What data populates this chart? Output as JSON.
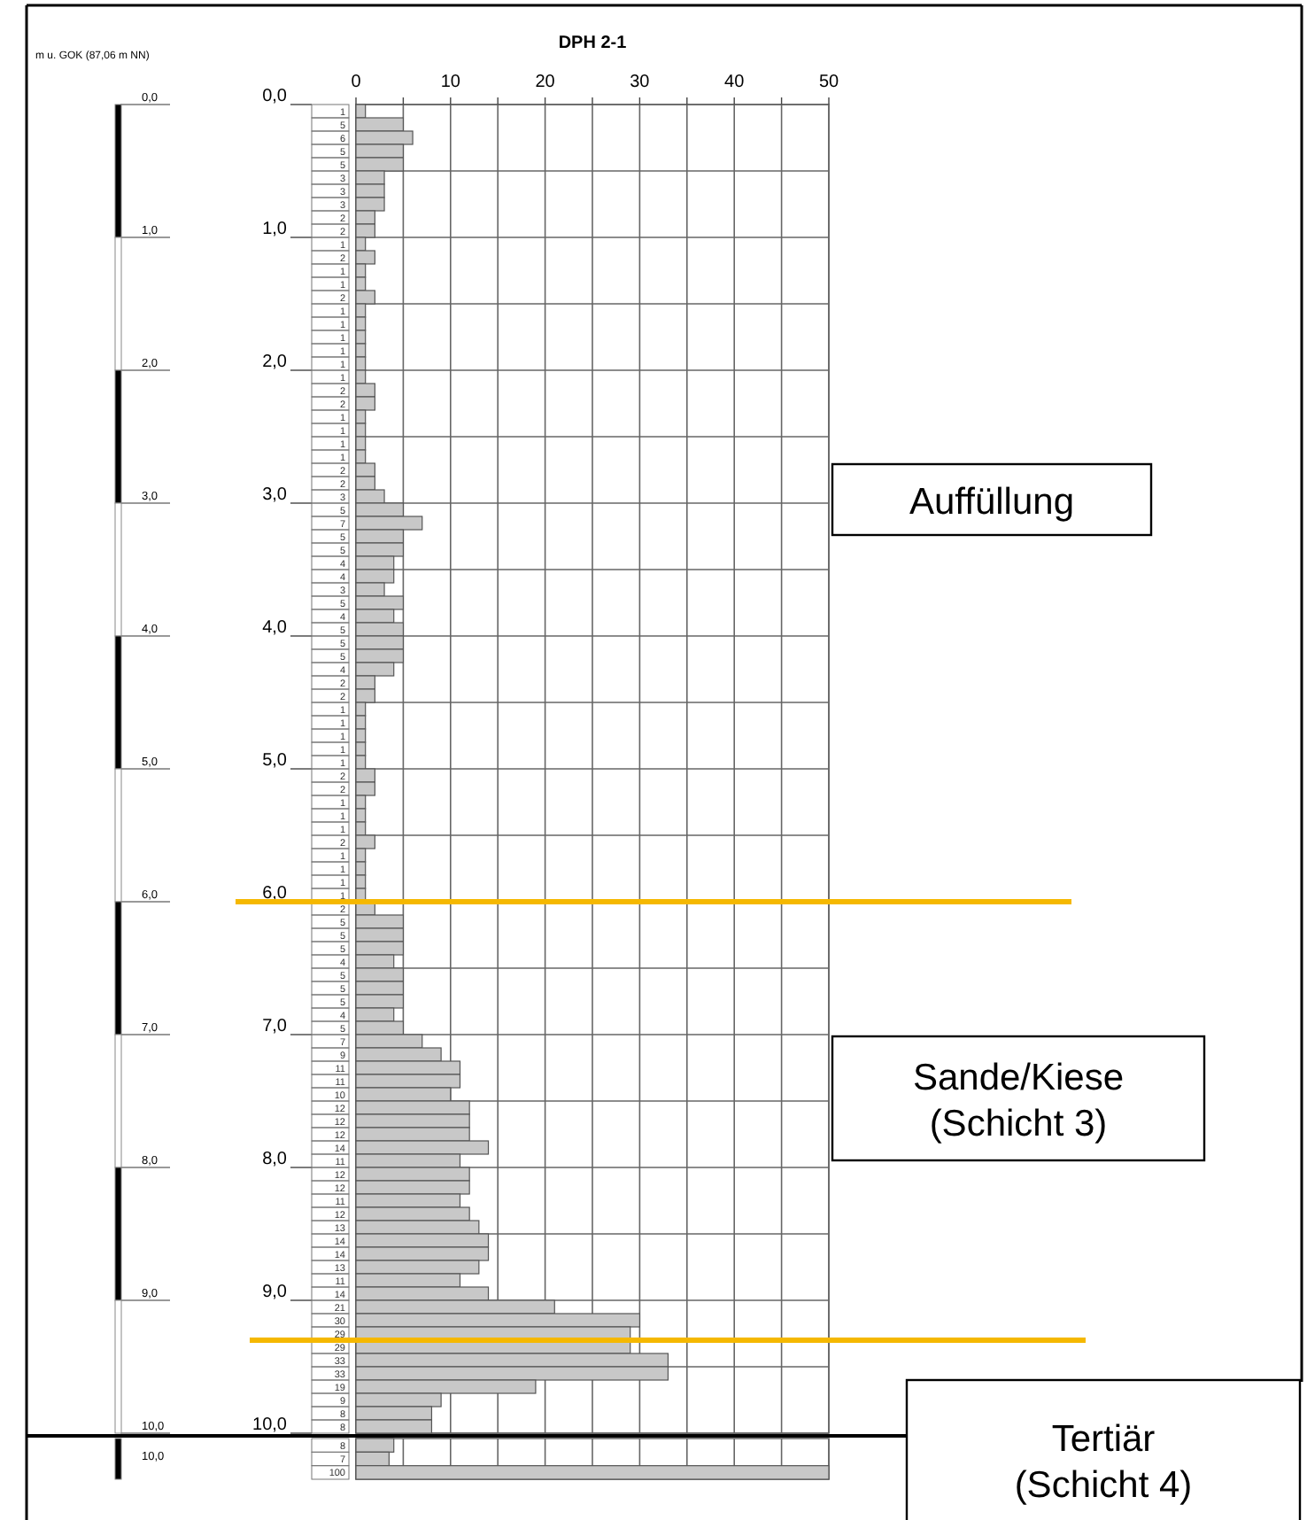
{
  "chart_data": [
    {
      "type": "bar",
      "orientation": "horizontal",
      "title": "DPH 2-1",
      "ylabel": "m u. GOK (87,06 m NN)",
      "x": [
        0.05,
        0.15,
        0.25,
        0.35,
        0.45,
        0.55,
        0.65,
        0.75,
        0.85,
        0.95,
        1.05,
        1.15,
        1.25,
        1.35,
        1.45,
        1.55,
        1.65,
        1.75,
        1.85,
        1.95,
        2.05,
        2.15,
        2.25,
        2.35,
        2.45,
        2.55,
        2.65,
        2.75,
        2.85,
        2.95,
        3.05,
        3.15,
        3.25,
        3.35,
        3.45,
        3.55,
        3.65,
        3.75,
        3.85,
        3.95,
        4.05,
        4.15,
        4.25,
        4.35,
        4.45,
        4.55,
        4.65,
        4.75,
        4.85,
        4.95,
        5.05,
        5.15,
        5.25,
        5.35,
        5.45,
        5.55,
        5.65,
        5.75,
        5.85,
        5.95,
        6.05,
        6.15,
        6.25,
        6.35,
        6.45,
        6.55,
        6.65,
        6.75,
        6.85,
        6.95,
        7.05,
        7.15,
        7.25,
        7.35,
        7.45,
        7.55,
        7.65,
        7.75,
        7.85,
        7.95,
        8.05,
        8.15,
        8.25,
        8.35,
        8.45,
        8.55,
        8.65,
        8.75,
        8.85,
        8.95,
        9.05,
        9.15,
        9.25,
        9.35,
        9.45,
        9.55,
        9.65,
        9.75,
        9.85,
        9.95
      ],
      "values": [
        1,
        5,
        6,
        5,
        5,
        3,
        3,
        3,
        2,
        2,
        1,
        2,
        1,
        1,
        2,
        1,
        1,
        1,
        1,
        1,
        1,
        2,
        2,
        1,
        1,
        1,
        1,
        2,
        2,
        3,
        5,
        7,
        5,
        5,
        4,
        4,
        3,
        5,
        4,
        5,
        5,
        5,
        4,
        2,
        2,
        1,
        1,
        1,
        1,
        1,
        2,
        2,
        1,
        1,
        1,
        2,
        1,
        1,
        1,
        1,
        2,
        5,
        5,
        5,
        4,
        5,
        5,
        5,
        4,
        5,
        7,
        9,
        11,
        11,
        10,
        12,
        12,
        12,
        14,
        11,
        12,
        12,
        11,
        12,
        13,
        14,
        14,
        13,
        11,
        14,
        21,
        30,
        29,
        29,
        33,
        33,
        19,
        9,
        8,
        8
      ],
      "color": "#c8c8c8",
      "data_labels": true,
      "xlim": [
        0,
        50
      ],
      "xticks": [
        0,
        {
          "value": 5,
          "label": null
        },
        10,
        {
          "value": 15,
          "label": null
        },
        20,
        {
          "value": 25,
          "label": null
        },
        30,
        {
          "value": 35,
          "label": null
        },
        40,
        {
          "value": 45,
          "label": null
        },
        50
      ],
      "ylim": [
        10,
        0
      ],
      "yticks": [
        {
          "value": 0,
          "label": "0,0"
        },
        {
          "value": 0.5,
          "label": null
        },
        {
          "value": 1,
          "label": "1,0"
        },
        {
          "value": 1.5,
          "label": null
        },
        {
          "value": 2,
          "label": "2,0"
        },
        {
          "value": 2.5,
          "label": null
        },
        {
          "value": 3,
          "label": "3,0"
        },
        {
          "value": 3.5,
          "label": null
        },
        {
          "value": 4,
          "label": "4,0"
        },
        {
          "value": 4.5,
          "label": null
        },
        {
          "value": 5,
          "label": "5,0"
        },
        {
          "value": 5.5,
          "label": null
        },
        {
          "value": 6,
          "label": "6,0"
        },
        {
          "value": 6.5,
          "label": null
        },
        {
          "value": 7,
          "label": "7,0"
        },
        {
          "value": 7.5,
          "label": null
        },
        {
          "value": 8,
          "label": "8,0"
        },
        {
          "value": 8.5,
          "label": null
        },
        {
          "value": 9,
          "label": "9,0"
        },
        {
          "value": 9.5,
          "label": null
        },
        {
          "value": 10,
          "label": "10,0"
        }
      ],
      "grid": true,
      "ref_lines": [
        {
          "axis": "y",
          "value": 6.0,
          "color": "#f5b800"
        },
        {
          "axis": "y",
          "value": 9.3,
          "color": "#f5b800"
        }
      ],
      "annotations": [
        "Auffüllung",
        "Sande/Kiese (Schicht 3)"
      ]
    },
    {
      "type": "bar",
      "orientation": "horizontal",
      "categories": [
        null,
        null,
        null
      ],
      "values": [
        8,
        7,
        100
      ],
      "color": "#c8c8c8",
      "data_labels": true,
      "xlim": [
        0,
        100
      ],
      "xticks": [
        {
          "value": 0,
          "label": null
        },
        {
          "value": 10,
          "label": null
        },
        {
          "value": 20,
          "label": null
        },
        {
          "value": 30,
          "label": null
        },
        {
          "value": 40,
          "label": null
        },
        {
          "value": 50,
          "label": null
        },
        {
          "value": 60,
          "label": null
        },
        {
          "value": 70,
          "label": null
        },
        {
          "value": 80,
          "label": null
        },
        {
          "value": 90,
          "label": null
        },
        {
          "value": 100,
          "label": null
        }
      ],
      "tick_labels": false,
      "grid": "x",
      "annotations": [
        "10,0",
        "Tertiär (Schicht 4)"
      ]
    }
  ]
}
